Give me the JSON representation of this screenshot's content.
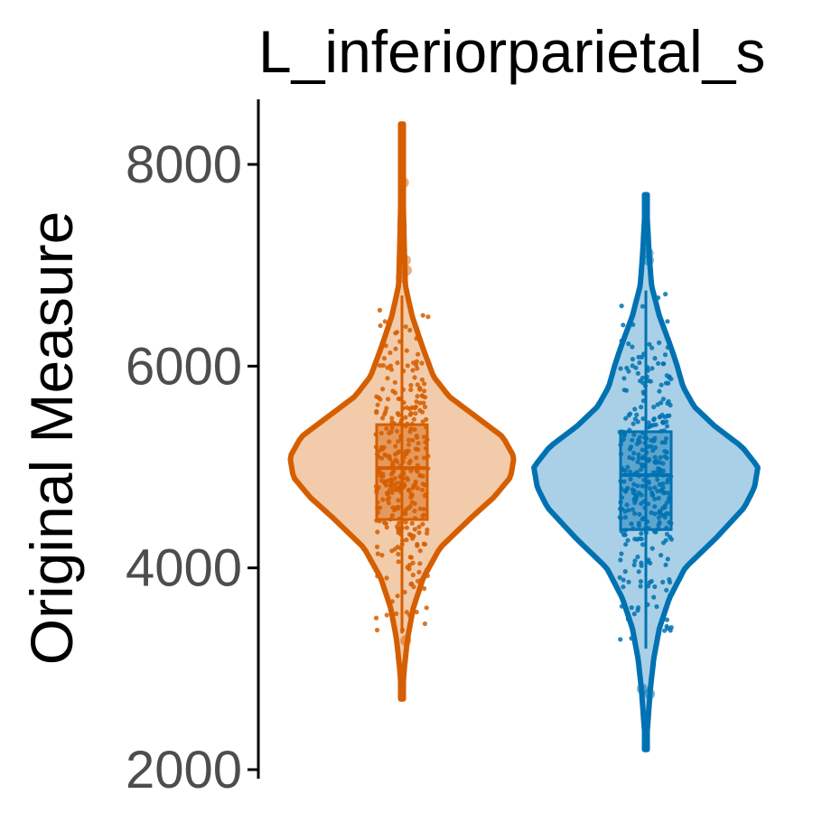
{
  "chart_data": {
    "type": "violin",
    "title": "L_inferiorparietal_s",
    "ylabel": "Original Measure",
    "xlabel": "",
    "ylim": [
      2000,
      8600
    ],
    "yticks": [
      2000,
      4000,
      6000,
      8000
    ],
    "grid": false,
    "legend": "none",
    "groups": [
      {
        "color": "#d55e00",
        "fill": "#f2cbaa",
        "violin_range": [
          2700,
          8400
        ],
        "violin_profile": [
          [
            2700,
            0.0
          ],
          [
            3000,
            0.02
          ],
          [
            3300,
            0.05
          ],
          [
            3600,
            0.1
          ],
          [
            3900,
            0.19
          ],
          [
            4200,
            0.34
          ],
          [
            4500,
            0.62
          ],
          [
            4700,
            0.82
          ],
          [
            4900,
            0.97
          ],
          [
            5100,
            1.0
          ],
          [
            5300,
            0.9
          ],
          [
            5500,
            0.66
          ],
          [
            5700,
            0.42
          ],
          [
            5900,
            0.28
          ],
          [
            6200,
            0.18
          ],
          [
            6500,
            0.09
          ],
          [
            6800,
            0.03
          ],
          [
            7200,
            0.02
          ],
          [
            7600,
            0.012
          ],
          [
            8000,
            0.008
          ],
          [
            8400,
            0.0
          ]
        ],
        "box": {
          "q1": 4480,
          "median": 4990,
          "q3": 5420,
          "whisker_low": 3350,
          "whisker_high": 6700
        },
        "outliers": [
          3280,
          7820,
          7050,
          6950,
          6880
        ]
      },
      {
        "color": "#0072b2",
        "fill": "#a9d0e6",
        "violin_range": [
          2200,
          7700
        ],
        "violin_profile": [
          [
            2200,
            0.0
          ],
          [
            2500,
            0.02
          ],
          [
            2800,
            0.04
          ],
          [
            3100,
            0.07
          ],
          [
            3400,
            0.12
          ],
          [
            3700,
            0.21
          ],
          [
            4000,
            0.35
          ],
          [
            4300,
            0.63
          ],
          [
            4600,
            0.88
          ],
          [
            4800,
            0.97
          ],
          [
            5000,
            1.0
          ],
          [
            5200,
            0.86
          ],
          [
            5400,
            0.62
          ],
          [
            5600,
            0.43
          ],
          [
            5800,
            0.33
          ],
          [
            6000,
            0.28
          ],
          [
            6200,
            0.22
          ],
          [
            6500,
            0.12
          ],
          [
            6800,
            0.05
          ],
          [
            7100,
            0.03
          ],
          [
            7400,
            0.015
          ],
          [
            7700,
            0.0
          ]
        ],
        "box": {
          "q1": 4380,
          "median": 4920,
          "q3": 5350,
          "whisker_low": 3200,
          "whisker_high": 6750
        },
        "outliers": [
          2750,
          2800,
          7120,
          7050
        ]
      }
    ]
  }
}
